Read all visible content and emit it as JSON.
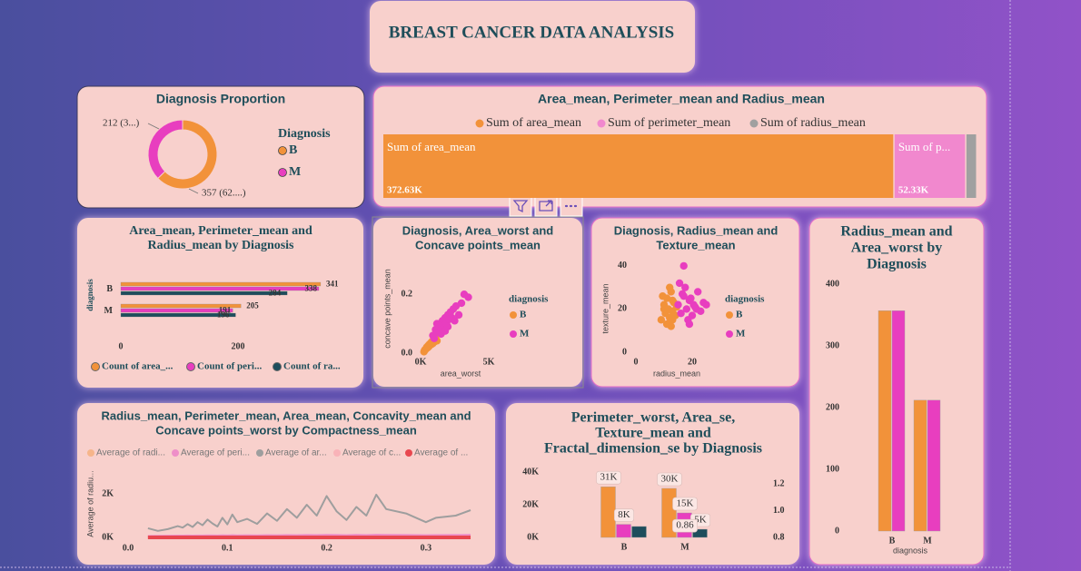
{
  "title": "BREAST CANCER DATA ANALYSIS",
  "chart_data": [
    {
      "type": "donut",
      "title": "Diagnosis Proportion",
      "legend_title": "Diagnosis",
      "categories": [
        "B",
        "M"
      ],
      "values": [
        357,
        212
      ],
      "value_labels": [
        "357 (62....)",
        "212 (3...)"
      ],
      "colors": [
        "#F2923A",
        "#E83EBF"
      ]
    },
    {
      "type": "bar",
      "stacked": "percent",
      "title": "Area_mean, Perimeter_mean and Radius_mean",
      "series": [
        {
          "name": "Sum of area_mean",
          "color": "#F2923A",
          "values": [
            372630
          ],
          "value_labels": [
            "372.63K"
          ],
          "bar_label": "Sum of area_mean"
        },
        {
          "name": "Sum of perimeter_mean",
          "color": "#F188CE",
          "values": [
            52330
          ],
          "value_labels": [
            "52.33K"
          ],
          "bar_label": "Sum of p..."
        },
        {
          "name": "Sum of radius_mean",
          "color": "#A0A0A0",
          "values": [
            8040
          ]
        }
      ]
    },
    {
      "type": "bar",
      "orientation": "horizontal",
      "title": [
        "Area_mean, Perimeter_mean and",
        "Radius_mean by Diagnosis"
      ],
      "ylabel": "diagnosis",
      "categories": [
        "B",
        "M"
      ],
      "series": [
        {
          "name": "Count of area_...",
          "color": "#F2923A",
          "values": [
            341,
            205
          ]
        },
        {
          "name": "Count of peri...",
          "color": "#E83EBF",
          "values": [
            338,
            191
          ]
        },
        {
          "name": "Count of ra...",
          "color": "#1E4D5C",
          "values": [
            284,
            196
          ]
        }
      ],
      "xlim": [
        0,
        400
      ],
      "xticks": [
        0,
        200
      ]
    },
    {
      "type": "scatter",
      "title": [
        "Diagnosis, Area_worst and",
        "Concave points_mean"
      ],
      "xlabel": "area_worst",
      "ylabel": "concave points_mean",
      "legend_title": "diagnosis",
      "series": [
        {
          "name": "B",
          "color": "#F2923A",
          "x": [
            250,
            300,
            350,
            400,
            450,
            500,
            550,
            600,
            650,
            700,
            750,
            800,
            850,
            900,
            950,
            1000,
            1100,
            1200
          ],
          "y": [
            0.005,
            0.01,
            0.012,
            0.015,
            0.02,
            0.018,
            0.025,
            0.022,
            0.03,
            0.028,
            0.035,
            0.03,
            0.04,
            0.033,
            0.045,
            0.038,
            0.05,
            0.042
          ]
        },
        {
          "name": "M",
          "color": "#E83EBF",
          "x": [
            900,
            1000,
            1100,
            1200,
            1300,
            1400,
            1500,
            1600,
            1700,
            1800,
            1900,
            2000,
            2100,
            2200,
            2300,
            2400,
            2600,
            2800,
            3000,
            3200,
            3500,
            1500,
            2000,
            2500,
            1200,
            1800
          ],
          "y": [
            0.06,
            0.05,
            0.08,
            0.07,
            0.09,
            0.1,
            0.085,
            0.11,
            0.095,
            0.12,
            0.1,
            0.13,
            0.115,
            0.14,
            0.12,
            0.15,
            0.16,
            0.13,
            0.17,
            0.2,
            0.19,
            0.065,
            0.09,
            0.11,
            0.1,
            0.075
          ]
        }
      ],
      "xlim": [
        0,
        6000
      ],
      "ylim": [
        0,
        0.25
      ],
      "xticks": [
        {
          "value": 0,
          "label": "0K"
        },
        {
          "value": 5000,
          "label": "5K"
        }
      ],
      "yticks": [
        {
          "value": 0,
          "label": "0.0"
        },
        0.2
      ]
    },
    {
      "type": "scatter",
      "title": [
        "Diagnosis, Radius_mean and",
        "Texture_mean"
      ],
      "xlabel": "radius_mean",
      "ylabel": "texture_mean",
      "legend_title": "diagnosis",
      "series": [
        {
          "name": "B",
          "color": "#F2923A",
          "x": [
            9,
            10,
            10.5,
            11,
            11.5,
            12,
            12.5,
            13,
            13.5,
            14,
            11,
            12,
            13,
            10,
            12.5,
            14.5,
            9.5,
            13
          ],
          "y": [
            15,
            22,
            18,
            25,
            20,
            16,
            28,
            19,
            23,
            17,
            13,
            30,
            24,
            20,
            12,
            21,
            26,
            15
          ]
        },
        {
          "name": "M",
          "color": "#E83EBF",
          "x": [
            15,
            16,
            17,
            18,
            19,
            20,
            21,
            22,
            23,
            24,
            17.5,
            18.5,
            19.5,
            20.5,
            16.5,
            21.5,
            17,
            25,
            15.5,
            19
          ],
          "y": [
            22,
            18,
            26,
            20,
            24,
            17,
            21,
            28,
            19,
            23,
            30,
            15,
            25,
            22,
            27,
            20,
            40,
            22,
            32,
            13
          ]
        }
      ],
      "xlim": [
        0,
        30
      ],
      "ylim": [
        0,
        45
      ],
      "xticks": [
        0,
        20
      ],
      "yticks": [
        0,
        20,
        40
      ]
    },
    {
      "type": "bar",
      "title": [
        "Radius_mean and",
        "Area_worst by",
        "Diagnosis"
      ],
      "xlabel": "diagnosis",
      "categories": [
        "B",
        "M"
      ],
      "series": [
        {
          "color": "#F2923A",
          "values": [
            357,
            212
          ]
        },
        {
          "color": "#E83EBF",
          "values": [
            357,
            212
          ]
        }
      ],
      "ylim": [
        0,
        400
      ],
      "yticks": [
        0,
        100,
        200,
        300,
        400
      ]
    },
    {
      "type": "line",
      "title": [
        "Radius_mean, Perimeter_mean, Area_mean, Concavity_mean and",
        "Concave points_worst by Compactness_mean"
      ],
      "ylabel": "Average of radiu...",
      "x": [
        0.02,
        0.03,
        0.04,
        0.05,
        0.055,
        0.06,
        0.065,
        0.07,
        0.075,
        0.08,
        0.085,
        0.09,
        0.095,
        0.1,
        0.105,
        0.11,
        0.12,
        0.13,
        0.14,
        0.15,
        0.16,
        0.17,
        0.18,
        0.19,
        0.2,
        0.21,
        0.22,
        0.23,
        0.24,
        0.25,
        0.26,
        0.28,
        0.3,
        0.31,
        0.33,
        0.345
      ],
      "series": [
        {
          "name": "Average of radi...",
          "color": "#F6B58A",
          "values": [
            11,
            12,
            12,
            13,
            13,
            14,
            13,
            14,
            14,
            15,
            14,
            14,
            15,
            15,
            16,
            15,
            16,
            15,
            16,
            16,
            17,
            16,
            18,
            17,
            19,
            18,
            17,
            18,
            17,
            19,
            18,
            18,
            17,
            17,
            18,
            18
          ]
        },
        {
          "name": "Average of peri...",
          "color": "#EE8FC8",
          "values": [
            70,
            75,
            78,
            82,
            85,
            88,
            84,
            90,
            87,
            95,
            92,
            90,
            98,
            94,
            102,
            96,
            100,
            95,
            105,
            99,
            110,
            104,
            115,
            108,
            120,
            112,
            105,
            118,
            110,
            125,
            120,
            115,
            105,
            110,
            112,
            118
          ]
        },
        {
          "name": "Average of ar...",
          "color": "#9E9E9E",
          "values": [
            420,
            300,
            380,
            520,
            450,
            610,
            480,
            700,
            560,
            820,
            640,
            500,
            900,
            600,
            1050,
            700,
            850,
            620,
            1100,
            760,
            1300,
            900,
            1500,
            1000,
            1900,
            1200,
            800,
            1400,
            1000,
            1960,
            1300,
            1100,
            700,
            900,
            1000,
            1250
          ]
        },
        {
          "name": "Average of c...",
          "color": "#F9B3B8",
          "values": [
            0.01,
            0.02,
            0.03,
            0.03,
            0.04,
            0.05,
            0.05,
            0.06,
            0.06,
            0.07,
            0.08,
            0.08,
            0.09,
            0.1,
            0.1,
            0.11,
            0.12,
            0.13,
            0.14,
            0.15,
            0.16,
            0.17,
            0.18,
            0.19,
            0.2,
            0.21,
            0.22,
            0.23,
            0.24,
            0.25,
            0.26,
            0.28,
            0.3,
            0.31,
            0.33,
            0.35
          ]
        },
        {
          "name": "Average of ...",
          "color": "#E8474F",
          "values": [
            0.06,
            0.07,
            0.08,
            0.08,
            0.09,
            0.1,
            0.1,
            0.11,
            0.11,
            0.12,
            0.12,
            0.12,
            0.13,
            0.13,
            0.14,
            0.14,
            0.15,
            0.15,
            0.16,
            0.16,
            0.17,
            0.17,
            0.18,
            0.18,
            0.19,
            0.19,
            0.2,
            0.2,
            0.2,
            0.21,
            0.21,
            0.22,
            0.22,
            0.22,
            0.23,
            0.23
          ]
        }
      ],
      "xlim": [
        0,
        0.35
      ],
      "ylim": [
        0,
        3000
      ],
      "xticks": [
        {
          "value": 0,
          "label": "0.0"
        },
        0.1,
        0.2,
        0.3
      ],
      "yticks": [
        {
          "value": 0,
          "label": "0K"
        },
        {
          "value": 2000,
          "label": "2K"
        }
      ]
    },
    {
      "type": "bar",
      "title": [
        "Perimeter_worst, Area_se,",
        "Texture_mean and",
        "Fractal_dimension_se by Diagnosis"
      ],
      "categories": [
        "B",
        "M"
      ],
      "series": [
        {
          "color": "#F2923A",
          "values": [
            31000,
            30000
          ],
          "value_labels": [
            "31K",
            "30K"
          ]
        },
        {
          "color": "#E83EBF",
          "values": [
            8000,
            15000
          ],
          "value_labels": [
            "8K",
            "15K"
          ]
        },
        {
          "color": "#1E4D5C",
          "values": [
            6700,
            5000
          ],
          "value_labels": [
            null,
            "5K"
          ]
        },
        {
          "color": "#9E9E9E",
          "axis": "y2",
          "values": [
            null,
            0.86
          ]
        }
      ],
      "ylim": [
        0,
        45000
      ],
      "yticks": [
        {
          "value": 0,
          "label": "0K"
        },
        {
          "value": 20000,
          "label": "20K"
        },
        {
          "value": 40000,
          "label": "40K"
        }
      ],
      "y2lim": [
        0.8,
        1.35
      ],
      "y2ticks": [
        0.8,
        {
          "value": 1,
          "label": "1.0"
        },
        1.2
      ]
    }
  ]
}
